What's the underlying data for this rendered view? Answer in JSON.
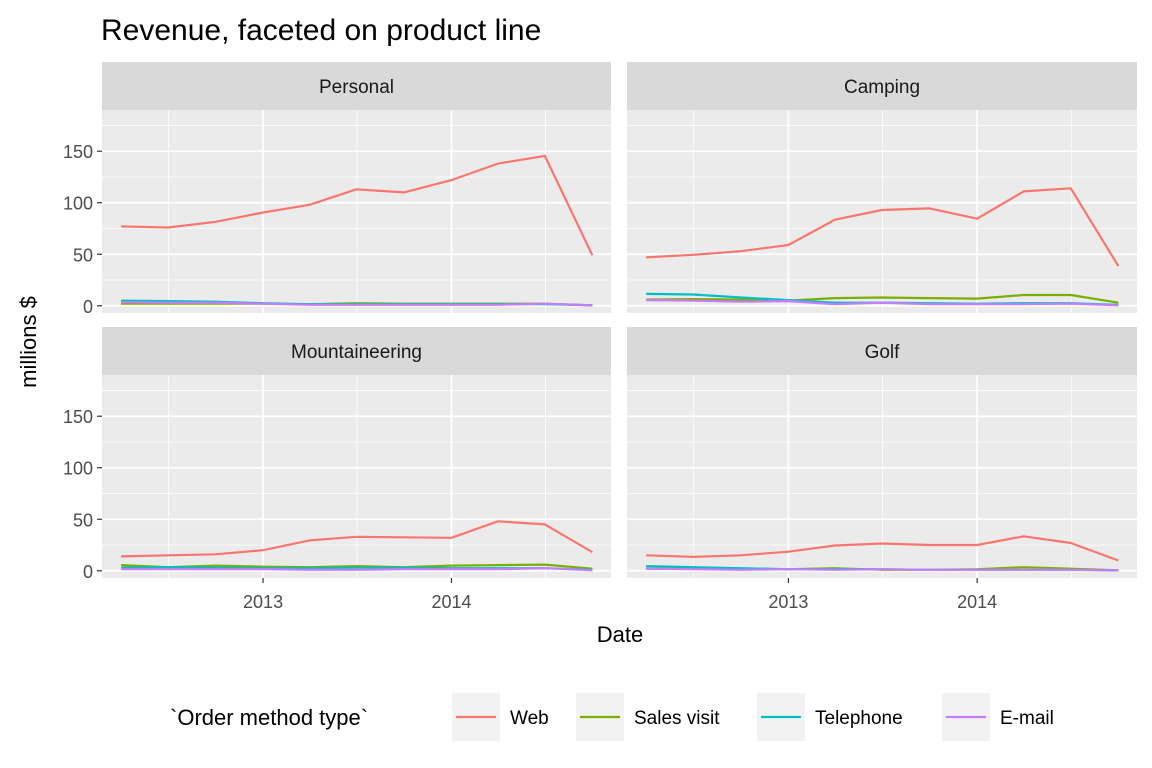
{
  "chart_data": {
    "type": "line",
    "title": "Revenue, faceted on product line",
    "xlabel": "Date",
    "ylabel": "millions $",
    "legend_title": "`Order method type`",
    "legend_position": "bottom",
    "grid": true,
    "x": [
      "2012-04-01",
      "2012-07-01",
      "2012-10-01",
      "2013-01-01",
      "2013-04-01",
      "2013-07-01",
      "2013-10-01",
      "2014-01-01",
      "2014-04-01",
      "2014-07-01",
      "2014-10-01"
    ],
    "xlim": [
      "2012-02-24",
      "2014-11-06"
    ],
    "x_ticks": [
      {
        "date": "2013-01-01",
        "label": "2013"
      },
      {
        "date": "2014-01-01",
        "label": "2014"
      }
    ],
    "ylim": [
      -7,
      190
    ],
    "y_ticks": [
      0,
      50,
      100,
      150
    ],
    "series_names": [
      "Web",
      "Sales visit",
      "Telephone",
      "E-mail"
    ],
    "series_colors": {
      "Web": "#F8766D",
      "Sales visit": "#7CAE00",
      "Telephone": "#00BFC4",
      "E-mail": "#C77CFF"
    },
    "panels": [
      {
        "name": "Personal",
        "series": [
          {
            "name": "Web",
            "values": [
              77,
              76,
              81.5,
              90.5,
              98,
              113,
              110,
              122,
              138,
              145.5,
              49
            ]
          },
          {
            "name": "Sales visit",
            "values": [
              2,
              2,
              2,
              2,
              1.5,
              2.5,
              2,
              2,
              2,
              2,
              0.5
            ]
          },
          {
            "name": "Telephone",
            "values": [
              5,
              4.5,
              4,
              2.5,
              1.5,
              1.5,
              1.5,
              1.5,
              1.5,
              1.5,
              0.5
            ]
          },
          {
            "name": "E-mail",
            "values": [
              3.5,
              3,
              3,
              2,
              1,
              1,
              1,
              1,
              1,
              2,
              0.5
            ]
          }
        ]
      },
      {
        "name": "Camping",
        "series": [
          {
            "name": "Web",
            "values": [
              47,
              49.5,
              53,
              59,
              83.5,
              93,
              94.5,
              84.5,
              111,
              114,
              38.5
            ]
          },
          {
            "name": "Sales visit",
            "values": [
              6,
              6.5,
              6,
              5,
              7.5,
              8,
              7.5,
              7,
              10.5,
              10.5,
              3
            ]
          },
          {
            "name": "Telephone",
            "values": [
              11.5,
              11,
              8,
              5.5,
              3,
              3,
              2.5,
              2,
              2.5,
              2.5,
              1
            ]
          },
          {
            "name": "E-mail",
            "values": [
              5.5,
              5,
              4,
              4.5,
              1.5,
              3,
              1.5,
              1.5,
              1.5,
              2,
              0.5
            ]
          }
        ]
      },
      {
        "name": "Mountaineering",
        "series": [
          {
            "name": "Web",
            "values": [
              14,
              15,
              16,
              20,
              29.5,
              33,
              32.5,
              32,
              48,
              45,
              18
            ]
          },
          {
            "name": "Sales visit",
            "values": [
              5.5,
              3.5,
              5,
              4,
              3.5,
              4.5,
              3.5,
              5,
              5.5,
              6,
              2
            ]
          },
          {
            "name": "Telephone",
            "values": [
              3,
              3.5,
              3,
              2.5,
              2.5,
              3,
              3,
              2.5,
              2.5,
              2.5,
              1
            ]
          },
          {
            "name": "E-mail",
            "values": [
              1.5,
              1.5,
              1.5,
              1.5,
              1,
              1,
              1.5,
              1.5,
              1.5,
              2.5,
              0.5
            ]
          }
        ]
      },
      {
        "name": "Golf",
        "series": [
          {
            "name": "Web",
            "values": [
              15,
              13.5,
              15,
              18.5,
              24.5,
              26.5,
              25,
              25,
              33.5,
              27,
              10
            ]
          },
          {
            "name": "Sales visit",
            "values": [
              2,
              2,
              2,
              1.5,
              2.5,
              1,
              1,
              1.5,
              3.5,
              2,
              0.5
            ]
          },
          {
            "name": "Telephone",
            "values": [
              4.5,
              3.5,
              2.5,
              1.5,
              1.5,
              1.5,
              1,
              1,
              1,
              1,
              0.5
            ]
          },
          {
            "name": "E-mail",
            "values": [
              2,
              1.5,
              1,
              1.5,
              1,
              1.5,
              1,
              1,
              1,
              1,
              0.5
            ]
          }
        ]
      }
    ]
  }
}
